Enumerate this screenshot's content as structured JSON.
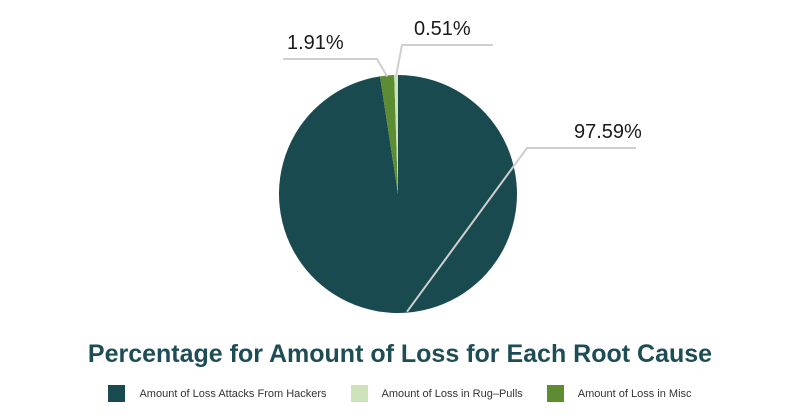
{
  "chart_data": {
    "type": "pie",
    "title": "Percentage for Amount of Loss for Each Root Cause",
    "slices": [
      {
        "name": "Amount of Loss Attacks From Hackers",
        "value": 97.59,
        "label": "97.59%",
        "color": "#184a50"
      },
      {
        "name": "Amount of Loss in Rug–Pulls",
        "value": 0.51,
        "label": "0.51%",
        "color": "#cde3b9"
      },
      {
        "name": "Amount of Loss in Misc",
        "value": 1.91,
        "label": "1.91%",
        "color": "#5e8c32"
      }
    ],
    "legend_position": "bottom"
  }
}
